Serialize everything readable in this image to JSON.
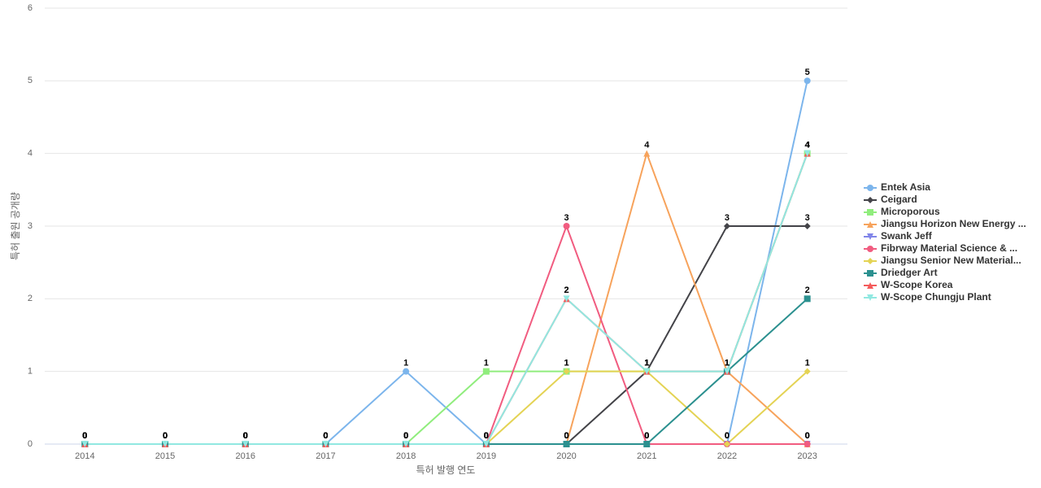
{
  "chart_data": {
    "type": "line",
    "x_label": "특허 발행 연도",
    "y_label": "특허 출원 공개량",
    "categories": [
      "2014",
      "2015",
      "2016",
      "2017",
      "2018",
      "2019",
      "2020",
      "2021",
      "2022",
      "2023"
    ],
    "ylim": [
      0,
      6
    ],
    "yticks": [
      0,
      1,
      2,
      3,
      4,
      5,
      6
    ],
    "grid": true,
    "legend": "right",
    "series": [
      {
        "name": "Entek Asia",
        "color": "#7cb5ec",
        "marker": "circle",
        "values": [
          0,
          0,
          0,
          0,
          1,
          0,
          0,
          0,
          0,
          5
        ]
      },
      {
        "name": "Ceigard",
        "color": "#434348",
        "marker": "diamond",
        "values": [
          0,
          0,
          0,
          0,
          0,
          0,
          0,
          1,
          3,
          3
        ]
      },
      {
        "name": "Microporous",
        "color": "#90ed7d",
        "marker": "square",
        "values": [
          0,
          0,
          0,
          0,
          0,
          1,
          1,
          1,
          1,
          4
        ]
      },
      {
        "name": "Jiangsu Horizon New Energy ...",
        "color": "#f7a35c",
        "marker": "triangle",
        "values": [
          0,
          0,
          0,
          0,
          0,
          0,
          0,
          4,
          1,
          0
        ]
      },
      {
        "name": "Swank Jeff",
        "color": "#8085e9",
        "marker": "triangle-down",
        "values": [
          0,
          0,
          0,
          0,
          0,
          0,
          0,
          0,
          0,
          0
        ]
      },
      {
        "name": "Fibrway Material Science & ...",
        "color": "#f15c80",
        "marker": "circle",
        "values": [
          0,
          0,
          0,
          0,
          0,
          0,
          3,
          0,
          0,
          0
        ]
      },
      {
        "name": "Jiangsu Senior New Material...",
        "color": "#e4d354",
        "marker": "diamond",
        "values": [
          0,
          0,
          0,
          0,
          0,
          0,
          1,
          1,
          0,
          1
        ]
      },
      {
        "name": "Driedger Art",
        "color": "#2b908f",
        "marker": "square",
        "values": [
          0,
          0,
          0,
          0,
          0,
          0,
          0,
          0,
          1,
          2
        ]
      },
      {
        "name": "W-Scope Korea",
        "color": "#f45b5b",
        "marker": "triangle",
        "values": [
          0,
          0,
          0,
          0,
          0,
          0,
          2,
          1,
          1,
          4
        ]
      },
      {
        "name": "W-Scope Chungju Plant",
        "color": "#91e8e1",
        "marker": "triangle-down",
        "values": [
          0,
          0,
          0,
          0,
          0,
          0,
          2,
          1,
          1,
          4
        ]
      }
    ]
  }
}
